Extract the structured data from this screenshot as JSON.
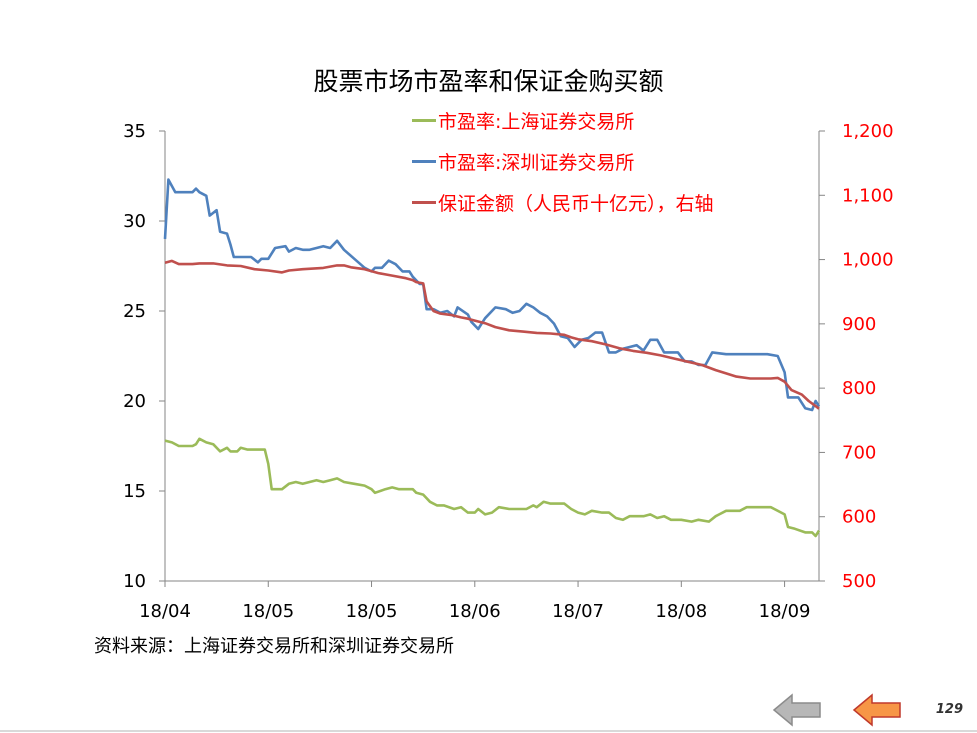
{
  "title": "股票市场市盈率和保证金购买额",
  "source": "资料来源：上海证券交易所和深圳证券交易所",
  "page_number": "129",
  "colors": {
    "green": "#9bbb59",
    "blue": "#4f81bd",
    "red": "#c0504d",
    "right_axis_text": "#ff0000"
  },
  "navigation": {
    "back_icon": "gray-left-arrow-icon",
    "forward_icon": "orange-left-arrow-icon"
  },
  "chart_data": {
    "type": "line",
    "title": "股票市场市盈率和保证金购买额",
    "x_tick_labels": [
      "18/04",
      "18/05",
      "18/05",
      "18/06",
      "18/07",
      "18/08",
      "18/09"
    ],
    "x_tick_days": [
      0,
      30,
      60,
      90,
      120,
      150,
      180
    ],
    "left_axis": {
      "ylim": [
        10,
        35
      ],
      "ticks": [
        10,
        15,
        20,
        25,
        30,
        35
      ]
    },
    "right_axis": {
      "ylim": [
        500,
        1200
      ],
      "ticks": [
        "500",
        "600",
        "700",
        "800",
        "900",
        "1,000",
        "1,100",
        "1,200"
      ]
    },
    "legend_position": "top-center",
    "grid": false,
    "series": [
      {
        "name": "市盈率:上海证券交易所",
        "axis": "left",
        "color": "#9bbb59",
        "points": [
          [
            0,
            17.8
          ],
          [
            2,
            17.7
          ],
          [
            4,
            17.5
          ],
          [
            8,
            17.5
          ],
          [
            9,
            17.6
          ],
          [
            10,
            17.9
          ],
          [
            12,
            17.7
          ],
          [
            14,
            17.6
          ],
          [
            16,
            17.2
          ],
          [
            18,
            17.4
          ],
          [
            19,
            17.2
          ],
          [
            21,
            17.2
          ],
          [
            22,
            17.4
          ],
          [
            24,
            17.3
          ],
          [
            29,
            17.3
          ],
          [
            30,
            16.5
          ],
          [
            31,
            15.1
          ],
          [
            34,
            15.1
          ],
          [
            36,
            15.4
          ],
          [
            38,
            15.5
          ],
          [
            40,
            15.4
          ],
          [
            42,
            15.5
          ],
          [
            44,
            15.6
          ],
          [
            46,
            15.5
          ],
          [
            48,
            15.6
          ],
          [
            50,
            15.7
          ],
          [
            52,
            15.5
          ],
          [
            55,
            15.4
          ],
          [
            58,
            15.3
          ],
          [
            60,
            15.1
          ],
          [
            61,
            14.9
          ],
          [
            64,
            15.1
          ],
          [
            66,
            15.2
          ],
          [
            68,
            15.1
          ],
          [
            70,
            15.1
          ],
          [
            72,
            15.1
          ],
          [
            73,
            14.9
          ],
          [
            75,
            14.8
          ],
          [
            77,
            14.4
          ],
          [
            79,
            14.2
          ],
          [
            81,
            14.2
          ],
          [
            84,
            14.0
          ],
          [
            86,
            14.1
          ],
          [
            88,
            13.8
          ],
          [
            90,
            13.8
          ],
          [
            91,
            14.0
          ],
          [
            93,
            13.7
          ],
          [
            95,
            13.8
          ],
          [
            97,
            14.1
          ],
          [
            100,
            14.0
          ],
          [
            102,
            14.0
          ],
          [
            105,
            14.0
          ],
          [
            107,
            14.2
          ],
          [
            108,
            14.1
          ],
          [
            110,
            14.4
          ],
          [
            112,
            14.3
          ],
          [
            116,
            14.3
          ],
          [
            118,
            14.0
          ],
          [
            120,
            13.8
          ],
          [
            122,
            13.7
          ],
          [
            124,
            13.9
          ],
          [
            127,
            13.8
          ],
          [
            129,
            13.8
          ],
          [
            131,
            13.5
          ],
          [
            133,
            13.4
          ],
          [
            135,
            13.6
          ],
          [
            137,
            13.6
          ],
          [
            139,
            13.6
          ],
          [
            141,
            13.7
          ],
          [
            143,
            13.5
          ],
          [
            145,
            13.6
          ],
          [
            147,
            13.4
          ],
          [
            150,
            13.4
          ],
          [
            153,
            13.3
          ],
          [
            155,
            13.4
          ],
          [
            158,
            13.3
          ],
          [
            160,
            13.6
          ],
          [
            161,
            13.7
          ],
          [
            163,
            13.9
          ],
          [
            167,
            13.9
          ],
          [
            169,
            14.1
          ],
          [
            173,
            14.1
          ],
          [
            176,
            14.1
          ],
          [
            177,
            14.0
          ],
          [
            180,
            13.7
          ],
          [
            181,
            13.0
          ],
          [
            183,
            12.9
          ],
          [
            186,
            12.7
          ],
          [
            188,
            12.7
          ],
          [
            189,
            12.5
          ],
          [
            190,
            12.8
          ]
        ]
      },
      {
        "name": "市盈率:深圳证券交易所",
        "axis": "left",
        "color": "#4f81bd",
        "points": [
          [
            0,
            29.0
          ],
          [
            1,
            32.3
          ],
          [
            3,
            31.6
          ],
          [
            8,
            31.6
          ],
          [
            9,
            31.8
          ],
          [
            10,
            31.6
          ],
          [
            12,
            31.4
          ],
          [
            13,
            30.3
          ],
          [
            15,
            30.6
          ],
          [
            16,
            29.4
          ],
          [
            18,
            29.3
          ],
          [
            19,
            28.7
          ],
          [
            20,
            28.0
          ],
          [
            22,
            28.0
          ],
          [
            25,
            28.0
          ],
          [
            27,
            27.7
          ],
          [
            28,
            27.9
          ],
          [
            30,
            27.9
          ],
          [
            32,
            28.5
          ],
          [
            35,
            28.6
          ],
          [
            36,
            28.3
          ],
          [
            38,
            28.5
          ],
          [
            40,
            28.4
          ],
          [
            42,
            28.4
          ],
          [
            44,
            28.5
          ],
          [
            46,
            28.6
          ],
          [
            48,
            28.5
          ],
          [
            50,
            28.9
          ],
          [
            52,
            28.4
          ],
          [
            55,
            27.9
          ],
          [
            58,
            27.4
          ],
          [
            60,
            27.2
          ],
          [
            61,
            27.4
          ],
          [
            63,
            27.4
          ],
          [
            65,
            27.8
          ],
          [
            67,
            27.6
          ],
          [
            69,
            27.2
          ],
          [
            71,
            27.2
          ],
          [
            72,
            26.9
          ],
          [
            74,
            26.5
          ],
          [
            75,
            26.5
          ],
          [
            76,
            25.1
          ],
          [
            78,
            25.1
          ],
          [
            80,
            24.9
          ],
          [
            82,
            25.0
          ],
          [
            84,
            24.7
          ],
          [
            85,
            25.2
          ],
          [
            88,
            24.8
          ],
          [
            89,
            24.4
          ],
          [
            91,
            24.0
          ],
          [
            93,
            24.6
          ],
          [
            96,
            25.2
          ],
          [
            99,
            25.1
          ],
          [
            101,
            24.9
          ],
          [
            103,
            25.0
          ],
          [
            105,
            25.4
          ],
          [
            107,
            25.2
          ],
          [
            109,
            24.9
          ],
          [
            111,
            24.7
          ],
          [
            113,
            24.3
          ],
          [
            115,
            23.6
          ],
          [
            117,
            23.5
          ],
          [
            119,
            23.0
          ],
          [
            121,
            23.4
          ],
          [
            123,
            23.5
          ],
          [
            125,
            23.8
          ],
          [
            127,
            23.8
          ],
          [
            129,
            22.7
          ],
          [
            131,
            22.7
          ],
          [
            133,
            22.9
          ],
          [
            135,
            23.0
          ],
          [
            137,
            23.1
          ],
          [
            139,
            22.8
          ],
          [
            141,
            23.4
          ],
          [
            143,
            23.4
          ],
          [
            145,
            22.7
          ],
          [
            149,
            22.7
          ],
          [
            151,
            22.2
          ],
          [
            153,
            22.2
          ],
          [
            155,
            22.0
          ],
          [
            157,
            22.0
          ],
          [
            159,
            22.7
          ],
          [
            163,
            22.6
          ],
          [
            165,
            22.6
          ],
          [
            175,
            22.6
          ],
          [
            178,
            22.5
          ],
          [
            180,
            21.6
          ],
          [
            181,
            20.2
          ],
          [
            184,
            20.2
          ],
          [
            186,
            19.6
          ],
          [
            188,
            19.5
          ],
          [
            189,
            20.0
          ],
          [
            190,
            19.7
          ]
        ]
      },
      {
        "name": "保证金额（人民币十亿元），右轴",
        "axis": "right",
        "color": "#c0504d",
        "points": [
          [
            0,
            995
          ],
          [
            2,
            998
          ],
          [
            4,
            993
          ],
          [
            8,
            993
          ],
          [
            10,
            994
          ],
          [
            14,
            994
          ],
          [
            18,
            991
          ],
          [
            22,
            990
          ],
          [
            26,
            985
          ],
          [
            30,
            983
          ],
          [
            34,
            980
          ],
          [
            36,
            983
          ],
          [
            40,
            985
          ],
          [
            46,
            987
          ],
          [
            50,
            991
          ],
          [
            52,
            991
          ],
          [
            54,
            988
          ],
          [
            58,
            985
          ],
          [
            62,
            979
          ],
          [
            66,
            975
          ],
          [
            70,
            971
          ],
          [
            72,
            968
          ],
          [
            73,
            965
          ],
          [
            75,
            963
          ],
          [
            76,
            935
          ],
          [
            78,
            920
          ],
          [
            80,
            916
          ],
          [
            83,
            914
          ],
          [
            86,
            910
          ],
          [
            88,
            908
          ],
          [
            90,
            905
          ],
          [
            93,
            901
          ],
          [
            96,
            895
          ],
          [
            100,
            890
          ],
          [
            104,
            888
          ],
          [
            108,
            886
          ],
          [
            112,
            885
          ],
          [
            116,
            883
          ],
          [
            118,
            879
          ],
          [
            120,
            876
          ],
          [
            124,
            873
          ],
          [
            128,
            868
          ],
          [
            132,
            862
          ],
          [
            136,
            858
          ],
          [
            140,
            855
          ],
          [
            144,
            851
          ],
          [
            148,
            846
          ],
          [
            152,
            841
          ],
          [
            156,
            836
          ],
          [
            160,
            828
          ],
          [
            163,
            823
          ],
          [
            166,
            818
          ],
          [
            170,
            815
          ],
          [
            176,
            815
          ],
          [
            178,
            816
          ],
          [
            180,
            810
          ],
          [
            182,
            797
          ],
          [
            185,
            790
          ],
          [
            187,
            780
          ],
          [
            189,
            772
          ],
          [
            190,
            768
          ]
        ]
      }
    ]
  }
}
